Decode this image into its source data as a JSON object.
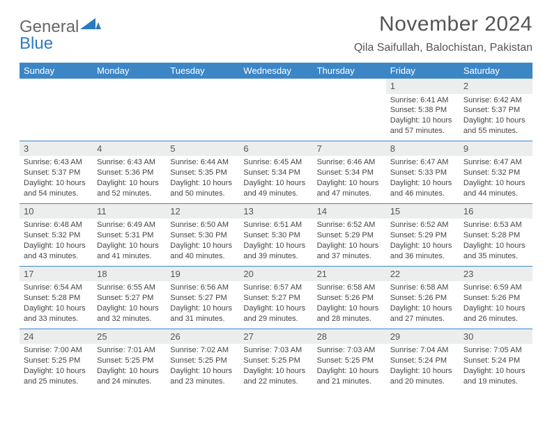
{
  "brand": {
    "word1": "General",
    "word2": "Blue"
  },
  "header": {
    "title": "November 2024",
    "subtitle": "Qila Saifullah, Balochistan, Pakistan"
  },
  "colors": {
    "header_bg": "#3d86c6",
    "header_text": "#ffffff",
    "daynum_bg": "#eceded",
    "row_border": "#3d86c6",
    "body_text": "#444444",
    "page_bg": "#ffffff",
    "logo_blue": "#2a7ac0",
    "logo_gray": "#666666"
  },
  "typography": {
    "title_fontsize": 30,
    "subtitle_fontsize": 16,
    "weekday_fontsize": 13,
    "daynum_fontsize": 13,
    "cell_fontsize": 11,
    "font_family": "Arial"
  },
  "calendar": {
    "type": "calendar-table",
    "columns": 7,
    "rows": 5,
    "weekdays": [
      "Sunday",
      "Monday",
      "Tuesday",
      "Wednesday",
      "Thursday",
      "Friday",
      "Saturday"
    ],
    "weeks": [
      [
        {
          "day": "",
          "empty": true
        },
        {
          "day": "",
          "empty": true
        },
        {
          "day": "",
          "empty": true
        },
        {
          "day": "",
          "empty": true
        },
        {
          "day": "",
          "empty": true
        },
        {
          "day": "1",
          "sunrise": "Sunrise: 6:41 AM",
          "sunset": "Sunset: 5:38 PM",
          "daylight": "Daylight: 10 hours and 57 minutes."
        },
        {
          "day": "2",
          "sunrise": "Sunrise: 6:42 AM",
          "sunset": "Sunset: 5:37 PM",
          "daylight": "Daylight: 10 hours and 55 minutes."
        }
      ],
      [
        {
          "day": "3",
          "sunrise": "Sunrise: 6:43 AM",
          "sunset": "Sunset: 5:37 PM",
          "daylight": "Daylight: 10 hours and 54 minutes."
        },
        {
          "day": "4",
          "sunrise": "Sunrise: 6:43 AM",
          "sunset": "Sunset: 5:36 PM",
          "daylight": "Daylight: 10 hours and 52 minutes."
        },
        {
          "day": "5",
          "sunrise": "Sunrise: 6:44 AM",
          "sunset": "Sunset: 5:35 PM",
          "daylight": "Daylight: 10 hours and 50 minutes."
        },
        {
          "day": "6",
          "sunrise": "Sunrise: 6:45 AM",
          "sunset": "Sunset: 5:34 PM",
          "daylight": "Daylight: 10 hours and 49 minutes."
        },
        {
          "day": "7",
          "sunrise": "Sunrise: 6:46 AM",
          "sunset": "Sunset: 5:34 PM",
          "daylight": "Daylight: 10 hours and 47 minutes."
        },
        {
          "day": "8",
          "sunrise": "Sunrise: 6:47 AM",
          "sunset": "Sunset: 5:33 PM",
          "daylight": "Daylight: 10 hours and 46 minutes."
        },
        {
          "day": "9",
          "sunrise": "Sunrise: 6:47 AM",
          "sunset": "Sunset: 5:32 PM",
          "daylight": "Daylight: 10 hours and 44 minutes."
        }
      ],
      [
        {
          "day": "10",
          "sunrise": "Sunrise: 6:48 AM",
          "sunset": "Sunset: 5:32 PM",
          "daylight": "Daylight: 10 hours and 43 minutes."
        },
        {
          "day": "11",
          "sunrise": "Sunrise: 6:49 AM",
          "sunset": "Sunset: 5:31 PM",
          "daylight": "Daylight: 10 hours and 41 minutes."
        },
        {
          "day": "12",
          "sunrise": "Sunrise: 6:50 AM",
          "sunset": "Sunset: 5:30 PM",
          "daylight": "Daylight: 10 hours and 40 minutes."
        },
        {
          "day": "13",
          "sunrise": "Sunrise: 6:51 AM",
          "sunset": "Sunset: 5:30 PM",
          "daylight": "Daylight: 10 hours and 39 minutes."
        },
        {
          "day": "14",
          "sunrise": "Sunrise: 6:52 AM",
          "sunset": "Sunset: 5:29 PM",
          "daylight": "Daylight: 10 hours and 37 minutes."
        },
        {
          "day": "15",
          "sunrise": "Sunrise: 6:52 AM",
          "sunset": "Sunset: 5:29 PM",
          "daylight": "Daylight: 10 hours and 36 minutes."
        },
        {
          "day": "16",
          "sunrise": "Sunrise: 6:53 AM",
          "sunset": "Sunset: 5:28 PM",
          "daylight": "Daylight: 10 hours and 35 minutes."
        }
      ],
      [
        {
          "day": "17",
          "sunrise": "Sunrise: 6:54 AM",
          "sunset": "Sunset: 5:28 PM",
          "daylight": "Daylight: 10 hours and 33 minutes."
        },
        {
          "day": "18",
          "sunrise": "Sunrise: 6:55 AM",
          "sunset": "Sunset: 5:27 PM",
          "daylight": "Daylight: 10 hours and 32 minutes."
        },
        {
          "day": "19",
          "sunrise": "Sunrise: 6:56 AM",
          "sunset": "Sunset: 5:27 PM",
          "daylight": "Daylight: 10 hours and 31 minutes."
        },
        {
          "day": "20",
          "sunrise": "Sunrise: 6:57 AM",
          "sunset": "Sunset: 5:27 PM",
          "daylight": "Daylight: 10 hours and 29 minutes."
        },
        {
          "day": "21",
          "sunrise": "Sunrise: 6:58 AM",
          "sunset": "Sunset: 5:26 PM",
          "daylight": "Daylight: 10 hours and 28 minutes."
        },
        {
          "day": "22",
          "sunrise": "Sunrise: 6:58 AM",
          "sunset": "Sunset: 5:26 PM",
          "daylight": "Daylight: 10 hours and 27 minutes."
        },
        {
          "day": "23",
          "sunrise": "Sunrise: 6:59 AM",
          "sunset": "Sunset: 5:26 PM",
          "daylight": "Daylight: 10 hours and 26 minutes."
        }
      ],
      [
        {
          "day": "24",
          "sunrise": "Sunrise: 7:00 AM",
          "sunset": "Sunset: 5:25 PM",
          "daylight": "Daylight: 10 hours and 25 minutes."
        },
        {
          "day": "25",
          "sunrise": "Sunrise: 7:01 AM",
          "sunset": "Sunset: 5:25 PM",
          "daylight": "Daylight: 10 hours and 24 minutes."
        },
        {
          "day": "26",
          "sunrise": "Sunrise: 7:02 AM",
          "sunset": "Sunset: 5:25 PM",
          "daylight": "Daylight: 10 hours and 23 minutes."
        },
        {
          "day": "27",
          "sunrise": "Sunrise: 7:03 AM",
          "sunset": "Sunset: 5:25 PM",
          "daylight": "Daylight: 10 hours and 22 minutes."
        },
        {
          "day": "28",
          "sunrise": "Sunrise: 7:03 AM",
          "sunset": "Sunset: 5:25 PM",
          "daylight": "Daylight: 10 hours and 21 minutes."
        },
        {
          "day": "29",
          "sunrise": "Sunrise: 7:04 AM",
          "sunset": "Sunset: 5:24 PM",
          "daylight": "Daylight: 10 hours and 20 minutes."
        },
        {
          "day": "30",
          "sunrise": "Sunrise: 7:05 AM",
          "sunset": "Sunset: 5:24 PM",
          "daylight": "Daylight: 10 hours and 19 minutes."
        }
      ]
    ]
  }
}
